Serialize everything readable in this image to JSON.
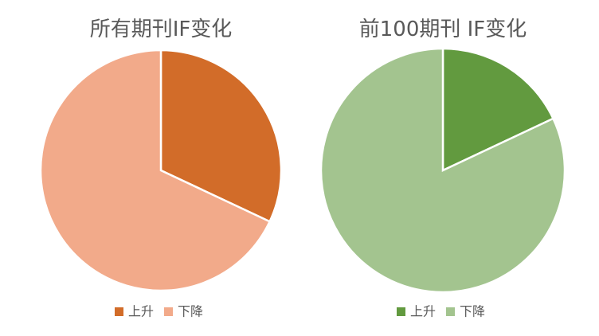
{
  "chart_data": [
    {
      "type": "pie",
      "title": "所有期刊IF变化",
      "categories": [
        "上升",
        "下降"
      ],
      "values": [
        32,
        68
      ],
      "colors": [
        "#d26c29",
        "#f2aa8a"
      ]
    },
    {
      "type": "pie",
      "title": "前100期刊 IF变化",
      "categories": [
        "上升",
        "下降"
      ],
      "values": [
        18,
        82
      ],
      "colors": [
        "#629a3f",
        "#a3c48f"
      ]
    }
  ]
}
